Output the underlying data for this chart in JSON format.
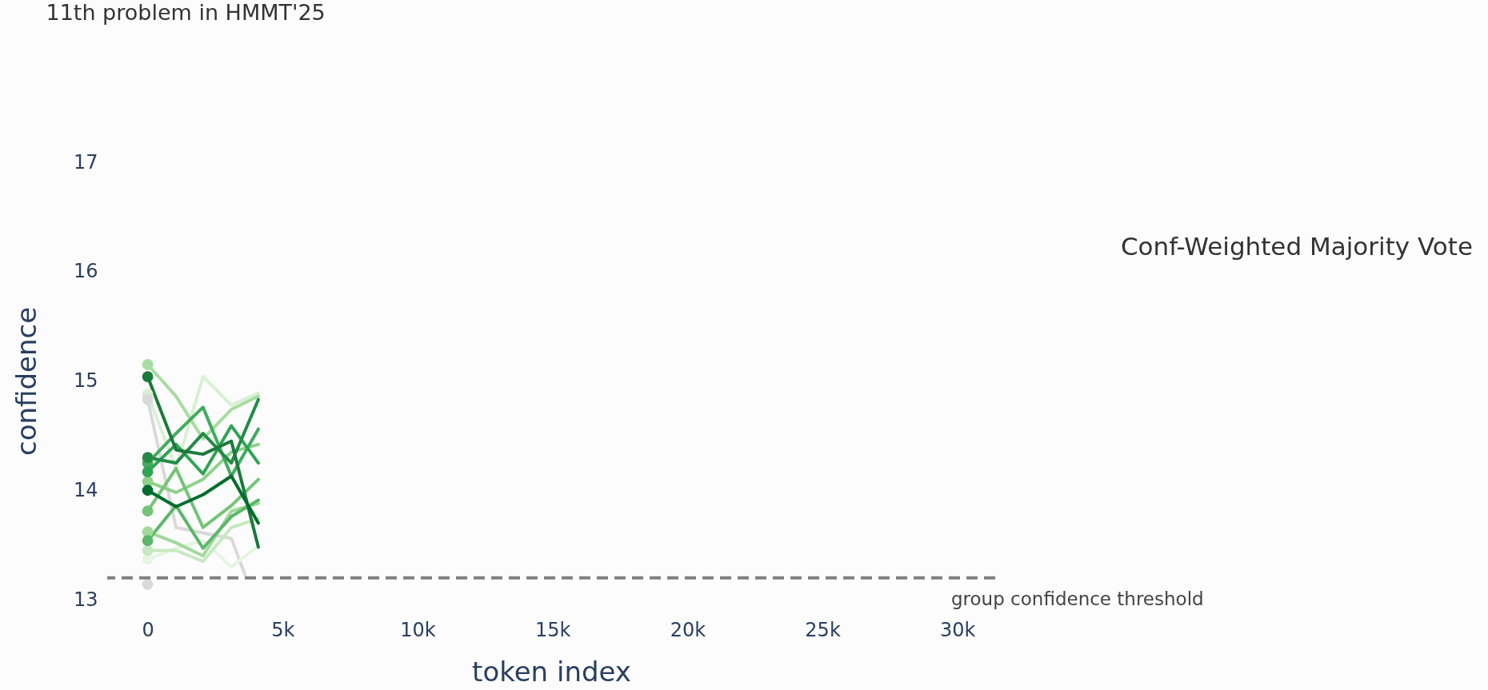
{
  "chart_data": {
    "type": "line",
    "title": "11th problem in HMMT'25",
    "xlabel": "token index",
    "ylabel": "confidence",
    "xlim": [
      -1500,
      31400
    ],
    "ylim": [
      13,
      17
    ],
    "xticks": [
      0,
      {
        "value": 5000,
        "label": "5k"
      },
      {
        "value": 10000,
        "label": "10k"
      },
      {
        "value": 15000,
        "label": "15k"
      },
      {
        "value": 20000,
        "label": "20k"
      },
      {
        "value": 25000,
        "label": "25k"
      },
      {
        "value": 30000,
        "label": "30k"
      }
    ],
    "yticks": [
      13,
      14,
      15,
      16,
      17
    ],
    "grid": false,
    "line_style": "solid",
    "x": [
      0,
      1050,
      2050,
      3100,
      4100
    ],
    "series": [
      {
        "color": "#d9d9d9",
        "x": [
          0,
          1050,
          2050,
          3100,
          3600
        ],
        "values": [
          14.83,
          13.66,
          13.61,
          13.56,
          13.23
        ]
      },
      {
        "color": "#e5f5e0",
        "values": [
          13.37,
          13.47,
          13.54,
          13.3,
          13.49
        ]
      },
      {
        "color": "#d9f0d3",
        "values": [
          14.88,
          14.2,
          15.04,
          14.78,
          14.89
        ]
      },
      {
        "color": "#c7e9c0",
        "values": [
          13.45,
          13.45,
          13.35,
          13.66,
          13.74
        ]
      },
      {
        "color": "#a8dca0",
        "values": [
          15.15,
          14.86,
          14.47,
          14.74,
          14.86
        ]
      },
      {
        "color": "#a1d99b",
        "values": [
          13.62,
          13.52,
          13.4,
          13.81,
          13.88
        ]
      },
      {
        "color": "#8fd18a",
        "values": [
          14.08,
          13.98,
          14.1,
          14.35,
          14.42
        ]
      },
      {
        "color": "#74c476",
        "values": [
          13.81,
          14.2,
          13.66,
          13.86,
          14.1
        ]
      },
      {
        "color": "#5bb86a",
        "values": [
          13.54,
          13.86,
          13.47,
          13.76,
          13.91
        ]
      },
      {
        "color": "#41ab5d",
        "values": [
          14.25,
          14.52,
          14.76,
          14.13,
          14.56
        ]
      },
      {
        "color": "#31a354",
        "values": [
          14.17,
          14.42,
          14.15,
          14.59,
          14.25
        ]
      },
      {
        "color": "#238b45",
        "values": [
          14.3,
          14.25,
          14.52,
          14.25,
          14.83
        ]
      },
      {
        "color": "#1b7a3a",
        "values": [
          15.04,
          14.37,
          14.33,
          14.45,
          13.48
        ]
      },
      {
        "color": "#006d2c",
        "values": [
          14.0,
          13.85,
          13.96,
          14.13,
          13.7
        ]
      },
      {
        "type": "scatter",
        "marker": "circle",
        "x": [
          0,
          0,
          0,
          0,
          0,
          0,
          0,
          0,
          0,
          0,
          0,
          0,
          0,
          0,
          0
        ],
        "values": [
          13.14,
          13.37,
          14.88,
          13.45,
          15.15,
          13.62,
          14.08,
          13.81,
          13.54,
          14.25,
          14.17,
          14.3,
          15.04,
          14.0,
          14.83
        ],
        "colors": [
          "#d9d9d9",
          "#e5f5e0",
          "#d9f0d3",
          "#c7e9c0",
          "#a8dca0",
          "#a1d99b",
          "#8fd18a",
          "#74c476",
          "#5bb86a",
          "#41ab5d",
          "#31a354",
          "#238b45",
          "#1b7a3a",
          "#006d2c",
          "#d9d9d9"
        ]
      }
    ],
    "ref_lines": [
      {
        "axis": "y",
        "value": 13.2,
        "label": "group confidence threshold",
        "color": "#7f7f7f",
        "line_style": "dashed"
      }
    ],
    "annotations": [
      "Conf-Weighted Majority Vote"
    ]
  }
}
